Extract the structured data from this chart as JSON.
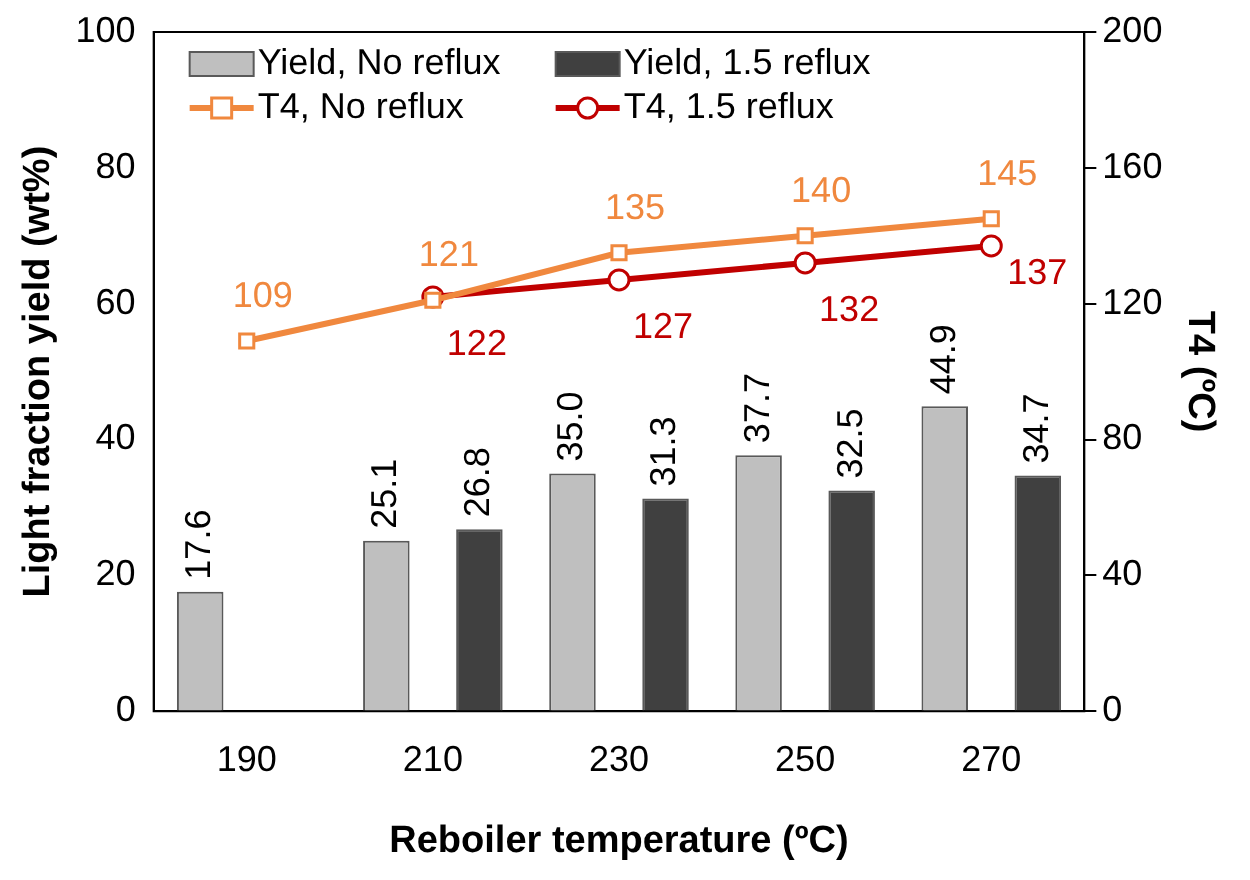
{
  "chart_data": {
    "type": "bar",
    "xlabel": "Reboiler temperature (ºC)",
    "ylabel": "Light fraction yield (wt%)",
    "y2label": "T4 (ºC)",
    "categories": [
      "190",
      "210",
      "230",
      "250",
      "270"
    ],
    "ylim": [
      0,
      100
    ],
    "yticks": [
      0,
      20,
      40,
      60,
      80,
      100
    ],
    "y2lim": [
      0,
      200
    ],
    "y2ticks": [
      0,
      40,
      80,
      120,
      160,
      200
    ],
    "grid": false,
    "legend": "top",
    "data_labels": true,
    "series": [
      {
        "name": "Yield, No reflux",
        "color": "#bfbfbf",
        "values": [
          17.6,
          25.1,
          35.0,
          37.7,
          44.9
        ],
        "value_labels": [
          "17.6",
          "25.1",
          "35.0",
          "37.7",
          "44.9"
        ]
      },
      {
        "name": "Yield, 1.5 reflux",
        "color": "#404040",
        "values": [
          null,
          26.8,
          31.3,
          32.5,
          34.7
        ],
        "value_labels": [
          null,
          "26.8",
          "31.3",
          "32.5",
          "34.7"
        ]
      },
      {
        "name": "T4, No reflux",
        "type": "line",
        "axis": "y2",
        "marker": "square",
        "color": "#f0883e",
        "values": [
          109,
          121,
          135,
          140,
          145
        ],
        "value_labels": [
          "109",
          "121",
          "135",
          "140",
          "145"
        ]
      },
      {
        "name": "T4, 1.5 reflux",
        "type": "line",
        "axis": "y2",
        "marker": "circle",
        "color": "#c00000",
        "values": [
          null,
          122,
          127,
          132,
          137
        ],
        "value_labels": [
          null,
          "122",
          "127",
          "132",
          "137"
        ]
      }
    ]
  }
}
